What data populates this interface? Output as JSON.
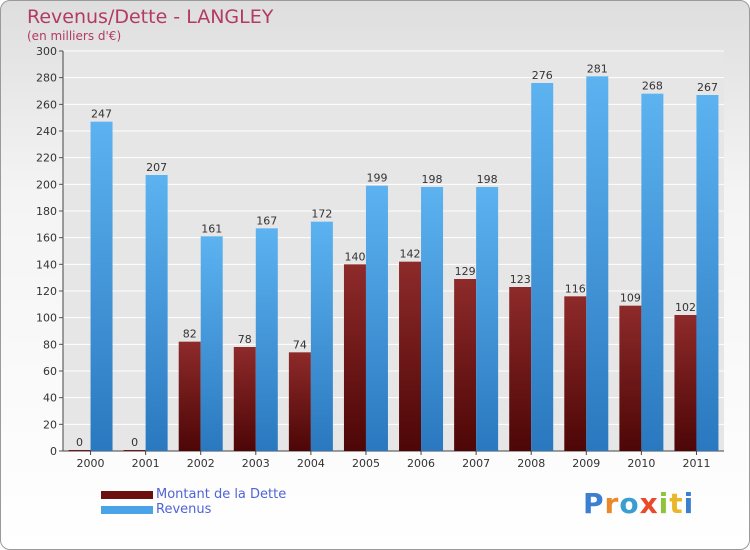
{
  "chart_data": {
    "type": "bar",
    "title": "Revenus/Dette - LANGLEY",
    "subtitle": "(en milliers d'€)",
    "categories": [
      "2000",
      "2001",
      "2002",
      "2003",
      "2004",
      "2005",
      "2006",
      "2007",
      "2008",
      "2009",
      "2010",
      "2011"
    ],
    "series": [
      {
        "name": "Montant de la Dette",
        "color": "#7a1a1a",
        "values": [
          0,
          0,
          82,
          78,
          74,
          140,
          142,
          129,
          123,
          116,
          109,
          102
        ]
      },
      {
        "name": "Revenus",
        "color": "#4aa3e6",
        "values": [
          247,
          207,
          161,
          167,
          172,
          199,
          198,
          198,
          276,
          281,
          268,
          267
        ]
      }
    ],
    "ylim": [
      0,
      300
    ],
    "yticks": [
      0,
      20,
      40,
      60,
      80,
      100,
      120,
      140,
      160,
      180,
      200,
      220,
      240,
      260,
      280,
      300
    ],
    "grid": true,
    "legend_position": "bottom-left"
  },
  "logo_text": "Proxiti"
}
